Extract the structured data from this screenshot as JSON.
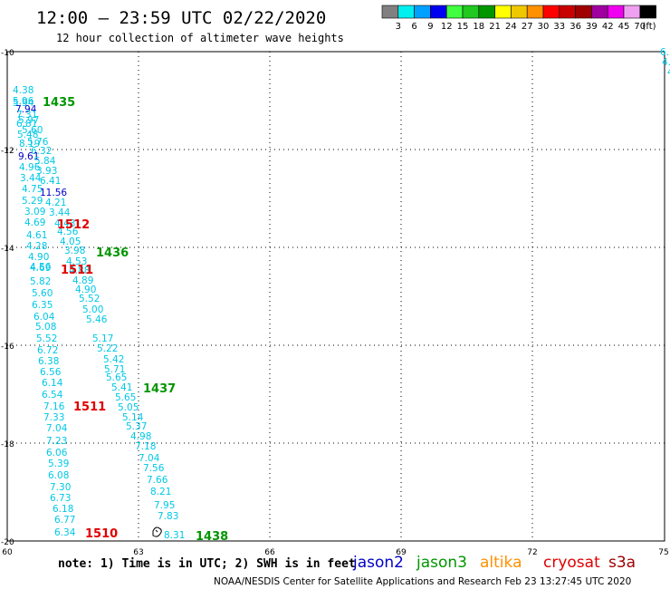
{
  "header": {
    "title": "12:00 – 23:59 UTC 02/22/2020",
    "subtitle": "12 hour collection of altimeter wave heights"
  },
  "legend": {
    "colors": [
      "#808080",
      "#00f0f0",
      "#00a0ff",
      "#0000f0",
      "#40ff40",
      "#20c820",
      "#009600",
      "#ffff00",
      "#f0c800",
      "#ff9000",
      "#ff0000",
      "#c80000",
      "#a00000",
      "#a000a0",
      "#f000f0",
      "#f0a0f0",
      "#000000"
    ],
    "labels": [
      "3",
      "6",
      "9",
      "12",
      "15",
      "18",
      "21",
      "24",
      "27",
      "30",
      "33",
      "36",
      "39",
      "42",
      "45",
      "70"
    ],
    "unit": "(ft)"
  },
  "axes": {
    "x_labels": [
      "60",
      "63",
      "66",
      "69",
      "72",
      "75"
    ],
    "y_labels": [
      "-10",
      "-12",
      "-14",
      "-16",
      "-18",
      "-20"
    ]
  },
  "points": [
    {
      "v": "4.38",
      "c": "#00c8e6"
    },
    {
      "v": "5.96",
      "c": "#00c8e6"
    },
    {
      "v": "5.94",
      "c": "#00c8e6"
    },
    {
      "v": "7.94",
      "c": "#0000c8"
    },
    {
      "v": "7.31",
      "c": "#00c8e6"
    },
    {
      "v": "5.97",
      "c": "#00c8e6"
    },
    {
      "v": "6.81",
      "c": "#00c8e6"
    },
    {
      "v": "5.60",
      "c": "#00c8e6"
    },
    {
      "v": "5.76",
      "c": "#00c8e6"
    },
    {
      "v": "5.48",
      "c": "#00c8e6"
    },
    {
      "v": "8.19",
      "c": "#00c8e6"
    },
    {
      "v": "6.32",
      "c": "#00c8e6"
    },
    {
      "v": "9.61",
      "c": "#0000c8"
    },
    {
      "v": "5.84",
      "c": "#00c8e6"
    },
    {
      "v": "4.96",
      "c": "#00c8e6"
    },
    {
      "v": "3.93",
      "c": "#00c8e6"
    },
    {
      "v": "3.44",
      "c": "#00c8e6"
    },
    {
      "v": "6.41",
      "c": "#00c8e6"
    },
    {
      "v": "4.75",
      "c": "#00c8e6"
    },
    {
      "v": "11.56",
      "c": "#0000c8"
    },
    {
      "v": "5.29",
      "c": "#00c8e6"
    },
    {
      "v": "4.21",
      "c": "#00c8e6"
    },
    {
      "v": "3.09",
      "c": "#00c8e6"
    },
    {
      "v": "3.44",
      "c": "#00c8e6"
    },
    {
      "v": "4.69",
      "c": "#00c8e6"
    },
    {
      "v": "4.43",
      "c": "#00c8e6"
    },
    {
      "v": "4.61",
      "c": "#00c8e6"
    },
    {
      "v": "4.56",
      "c": "#00c8e6"
    },
    {
      "v": "4.28",
      "c": "#00c8e6"
    },
    {
      "v": "4.05",
      "c": "#00c8e6"
    },
    {
      "v": "4.90",
      "c": "#00c8e6"
    },
    {
      "v": "3.98",
      "c": "#00c8e6"
    },
    {
      "v": "4.53",
      "c": "#00c8e6"
    },
    {
      "v": "4.88",
      "c": "#00c8e6"
    },
    {
      "v": "4.69",
      "c": "#00c8e6"
    },
    {
      "v": "4.56",
      "c": "#00c8e6"
    },
    {
      "v": "5.82",
      "c": "#00c8e6"
    },
    {
      "v": "4.89",
      "c": "#00c8e6"
    },
    {
      "v": "5.60",
      "c": "#00c8e6"
    },
    {
      "v": "4.90",
      "c": "#00c8e6"
    },
    {
      "v": "6.35",
      "c": "#00c8e6"
    },
    {
      "v": "5.52",
      "c": "#00c8e6"
    },
    {
      "v": "6.04",
      "c": "#00c8e6"
    },
    {
      "v": "5.00",
      "c": "#00c8e6"
    },
    {
      "v": "5.08",
      "c": "#00c8e6"
    },
    {
      "v": "5.46",
      "c": "#00c8e6"
    },
    {
      "v": "5.52",
      "c": "#00c8e6"
    },
    {
      "v": "5.17",
      "c": "#00c8e6"
    },
    {
      "v": "6.72",
      "c": "#00c8e6"
    },
    {
      "v": "5.22",
      "c": "#00c8e6"
    },
    {
      "v": "6.38",
      "c": "#00c8e6"
    },
    {
      "v": "5.42",
      "c": "#00c8e6"
    },
    {
      "v": "6.56",
      "c": "#00c8e6"
    },
    {
      "v": "5.71",
      "c": "#00c8e6"
    },
    {
      "v": "6.14",
      "c": "#00c8e6"
    },
    {
      "v": "5.65",
      "c": "#00c8e6"
    },
    {
      "v": "5.41",
      "c": "#00c8e6"
    },
    {
      "v": "6.54",
      "c": "#00c8e6"
    },
    {
      "v": "5.65",
      "c": "#00c8e6"
    },
    {
      "v": "7.16",
      "c": "#00c8e6"
    },
    {
      "v": "5.05",
      "c": "#00c8e6"
    },
    {
      "v": "7.33",
      "c": "#00c8e6"
    },
    {
      "v": "5.14",
      "c": "#00c8e6"
    },
    {
      "v": "7.04",
      "c": "#00c8e6"
    },
    {
      "v": "5.37",
      "c": "#00c8e6"
    },
    {
      "v": "7.23",
      "c": "#00c8e6"
    },
    {
      "v": "4.98",
      "c": "#00c8e6"
    },
    {
      "v": "6.06",
      "c": "#00c8e6"
    },
    {
      "v": "7.18",
      "c": "#00c8e6"
    },
    {
      "v": "5.39",
      "c": "#00c8e6"
    },
    {
      "v": "7.04",
      "c": "#00c8e6"
    },
    {
      "v": "6.08",
      "c": "#00c8e6"
    },
    {
      "v": "7.56",
      "c": "#00c8e6"
    },
    {
      "v": "7.30",
      "c": "#00c8e6"
    },
    {
      "v": "7.66",
      "c": "#00c8e6"
    },
    {
      "v": "6.73",
      "c": "#00c8e6"
    },
    {
      "v": "8.21",
      "c": "#00c8e6"
    },
    {
      "v": "6.18",
      "c": "#00c8e6"
    },
    {
      "v": "7.95",
      "c": "#00c8e6"
    },
    {
      "v": "6.77",
      "c": "#00c8e6"
    },
    {
      "v": "7.83",
      "c": "#00c8e6"
    },
    {
      "v": "6.34",
      "c": "#00c8e6"
    },
    {
      "v": "8.31",
      "c": "#00c8e6"
    },
    {
      "v": "6.56",
      "c": "#00c8e6"
    },
    {
      "v": "4.3",
      "c": "#00c8e6"
    },
    {
      "v": "4.",
      "c": "#00c8e6"
    },
    {
      "v": "4",
      "c": "#00c8e6"
    }
  ],
  "time_labels": [
    {
      "t": "1435",
      "c": "#009600"
    },
    {
      "t": "1512",
      "c": "#e00000"
    },
    {
      "t": "1436",
      "c": "#009600"
    },
    {
      "t": "1511",
      "c": "#e00000"
    },
    {
      "t": "1437",
      "c": "#009600"
    },
    {
      "t": "1511",
      "c": "#e00000"
    },
    {
      "t": "1510",
      "c": "#e00000"
    },
    {
      "t": "1438",
      "c": "#009600"
    }
  ],
  "footer": {
    "note": "note:  1) Time is in UTC; 2) SWH is in feet",
    "credit": "NOAA/NESDIS Center for Satellite Applications and Research     Feb 23 13:27:45 UTC 2020",
    "satellites": [
      {
        "name": "jason2",
        "color": "#0000c8"
      },
      {
        "name": "jason3",
        "color": "#009600"
      },
      {
        "name": "altika",
        "color": "#ff9000"
      },
      {
        "name": "cryosat",
        "color": "#e00000"
      },
      {
        "name": "s3a",
        "color": "#a00000"
      }
    ]
  }
}
